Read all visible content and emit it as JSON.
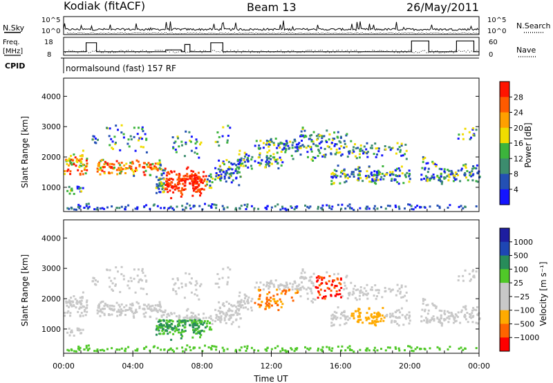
{
  "header": {
    "station": "Kodiak (fitACF)",
    "beam": "Beam 13",
    "date": "26/May/2011"
  },
  "colors": {
    "power": [
      "#1414ff",
      "#2450b4",
      "#3c8c6e",
      "#3cb43c",
      "#f0dc00",
      "#ffa000",
      "#ff5a00",
      "#ff1400"
    ],
    "velocity": [
      "#ff0000",
      "#ff6400",
      "#ffaa00",
      "#c8c8c8",
      "#c8c8c8",
      "#50c828",
      "#288c5a",
      "#1e46b4",
      "#1e1ea0"
    ]
  },
  "chart_data": [
    {
      "type": "line",
      "title": "",
      "series": [
        {
          "name": "N.Sky",
          "axis": "left",
          "style": "solid"
        },
        {
          "name": "N.Search",
          "axis": "right",
          "style": "dotted"
        }
      ],
      "left_labels": [
        "N.Sky"
      ],
      "left_ticks": [
        "10^5",
        "10^0"
      ],
      "right_labels": [
        "N.Search"
      ],
      "right_ticks": [
        "10^5",
        "10^0"
      ],
      "grid": false
    },
    {
      "type": "line",
      "series": [
        {
          "name": "Freq. [MHz]",
          "axis": "left",
          "style": "solid",
          "x": [
            0,
            1.3,
            1.3,
            1.9,
            1.9,
            5.9,
            5.9,
            6.8,
            6.8,
            7.0,
            7.0,
            7.3,
            7.3,
            8.5,
            8.5,
            9.2,
            9.2,
            20.1,
            20.1,
            21.1,
            21.1,
            22.7,
            22.7,
            23.7,
            23.7,
            24
          ],
          "y": [
            10,
            10,
            15,
            15,
            10,
            10,
            11,
            11,
            10,
            10,
            14,
            14,
            10,
            10,
            15,
            15,
            10,
            10,
            16,
            16,
            10,
            10,
            16,
            16,
            10,
            10
          ]
        },
        {
          "name": "Nave",
          "axis": "right",
          "style": "dotted"
        }
      ],
      "left_labels": [
        "Freq.",
        "[MHz]"
      ],
      "left_ticks": [
        "18",
        "8"
      ],
      "ylim": [
        8,
        18
      ],
      "right_labels": [
        "Nave"
      ],
      "right_ticks": [
        "60",
        "0"
      ],
      "grid": false
    },
    {
      "type": "table",
      "left_label": "CPID",
      "text": "normalsound (fast) 157 RF"
    },
    {
      "type": "heatmap",
      "ylabel": "Slant Range [km]",
      "yticks": [
        "4000",
        "3000",
        "2000",
        "1000"
      ],
      "ylim": [
        200,
        4600
      ],
      "colorbar_label": "Power [dB]",
      "colorbar_ticks": [
        "28",
        "24",
        "20",
        "16",
        "12",
        "8",
        "4"
      ],
      "colorbar_range": [
        0,
        32
      ]
    },
    {
      "type": "heatmap",
      "ylabel": "Slant Range [km]",
      "yticks": [
        "4000",
        "3000",
        "2000",
        "1000"
      ],
      "ylim": [
        200,
        4600
      ],
      "colorbar_label": "Velocity [m s⁻¹]",
      "colorbar_ticks": [
        "1000",
        "500",
        "100",
        "25",
        "−25",
        "−100",
        "−500",
        "−1000"
      ],
      "xlabel": "Time UT",
      "xticks": [
        "00:00",
        "04:00",
        "08:00",
        "12:00",
        "16:00",
        "20:00",
        "00:00"
      ],
      "xlim": [
        0,
        24
      ]
    }
  ]
}
